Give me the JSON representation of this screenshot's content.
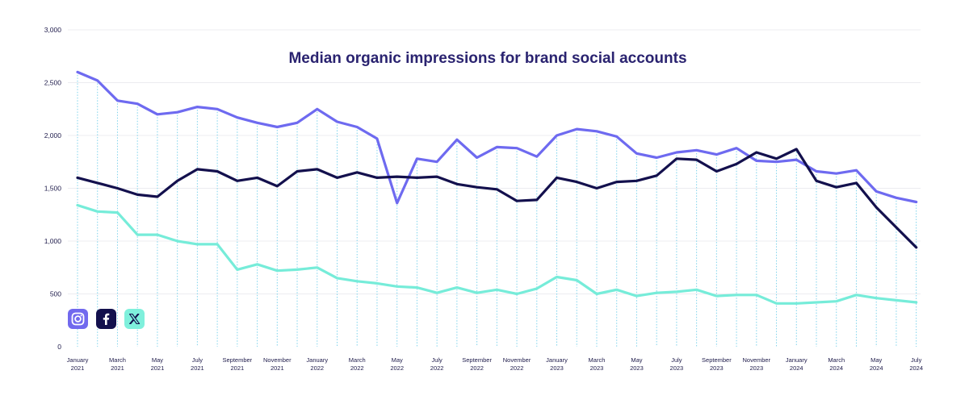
{
  "chart_data": {
    "type": "line",
    "title": "Median organic impressions for brand social accounts",
    "xlabel": "",
    "ylabel": "",
    "ylim": [
      0,
      3000
    ],
    "y_ticks": [
      "0",
      "500",
      "1,000",
      "1,500",
      "2,000",
      "2,500",
      "3,000"
    ],
    "y_tick_values": [
      0,
      500,
      1000,
      1500,
      2000,
      2500,
      3000
    ],
    "x_tick_labels": [
      [
        "January",
        "2021"
      ],
      [
        "March",
        "2021"
      ],
      [
        "May",
        "2021"
      ],
      [
        "July",
        "2021"
      ],
      [
        "September",
        "2021"
      ],
      [
        "November",
        "2021"
      ],
      [
        "January",
        "2022"
      ],
      [
        "March",
        "2022"
      ],
      [
        "May",
        "2022"
      ],
      [
        "July",
        "2022"
      ],
      [
        "September",
        "2022"
      ],
      [
        "November",
        "2022"
      ],
      [
        "January",
        "2023"
      ],
      [
        "March",
        "2023"
      ],
      [
        "May",
        "2023"
      ],
      [
        "July",
        "2023"
      ],
      [
        "September",
        "2023"
      ],
      [
        "November",
        "2023"
      ],
      [
        "January",
        "2024"
      ],
      [
        "March",
        "2024"
      ],
      [
        "May",
        "2024"
      ],
      [
        "July",
        "2024"
      ]
    ],
    "x": [
      "2021-01",
      "2021-02",
      "2021-03",
      "2021-04",
      "2021-05",
      "2021-06",
      "2021-07",
      "2021-08",
      "2021-09",
      "2021-10",
      "2021-11",
      "2021-12",
      "2022-01",
      "2022-02",
      "2022-03",
      "2022-04",
      "2022-05",
      "2022-06",
      "2022-07",
      "2022-08",
      "2022-09",
      "2022-10",
      "2022-11",
      "2022-12",
      "2023-01",
      "2023-02",
      "2023-03",
      "2023-04",
      "2023-05",
      "2023-06",
      "2023-07",
      "2023-08",
      "2023-09",
      "2023-10",
      "2023-11",
      "2023-12",
      "2024-01",
      "2024-02",
      "2024-03",
      "2024-04",
      "2024-05",
      "2024-06",
      "2024-07"
    ],
    "grid": true,
    "series": [
      {
        "platform": "instagram",
        "color": "#6e6af0",
        "values": [
          2600,
          2520,
          2330,
          2300,
          2200,
          2220,
          2270,
          2250,
          2170,
          2120,
          2080,
          2120,
          2250,
          2130,
          2080,
          1970,
          1360,
          1780,
          1750,
          1960,
          1790,
          1890,
          1880,
          1800,
          2000,
          2060,
          2040,
          1990,
          1830,
          1790,
          1840,
          1860,
          1820,
          1880,
          1760,
          1750,
          1770,
          1660,
          1640,
          1670,
          1470,
          1410,
          1370
        ]
      },
      {
        "platform": "facebook",
        "color": "#13104d",
        "values": [
          1600,
          1550,
          1500,
          1440,
          1420,
          1570,
          1680,
          1660,
          1570,
          1600,
          1520,
          1660,
          1680,
          1600,
          1650,
          1600,
          1610,
          1600,
          1610,
          1540,
          1510,
          1490,
          1380,
          1390,
          1600,
          1560,
          1500,
          1560,
          1570,
          1620,
          1780,
          1770,
          1660,
          1730,
          1840,
          1780,
          1870,
          1570,
          1510,
          1550,
          1320,
          1130,
          940
        ]
      },
      {
        "platform": "x",
        "color": "#76ecd9",
        "values": [
          1340,
          1280,
          1270,
          1060,
          1060,
          1000,
          970,
          970,
          730,
          780,
          720,
          730,
          750,
          650,
          620,
          600,
          570,
          560,
          510,
          560,
          510,
          540,
          500,
          550,
          660,
          630,
          500,
          540,
          480,
          510,
          520,
          540,
          480,
          490,
          490,
          410,
          410,
          420,
          430,
          490,
          460,
          440,
          420
        ]
      }
    ],
    "legend": {
      "placement": "bottom-left",
      "items": [
        {
          "icon": "instagram-icon",
          "bg": "#7169ee",
          "fg": "#ffffff"
        },
        {
          "icon": "facebook-icon",
          "bg": "#13104d",
          "fg": "#ffffff"
        },
        {
          "icon": "x-logo-icon",
          "bg": "#7ff0dc",
          "fg": "#13104d"
        }
      ]
    },
    "colors": {
      "title": "#2a2370",
      "text": "#1d1a4a",
      "gridline": "#ececf0",
      "dropline": "#7fd3ec"
    }
  }
}
